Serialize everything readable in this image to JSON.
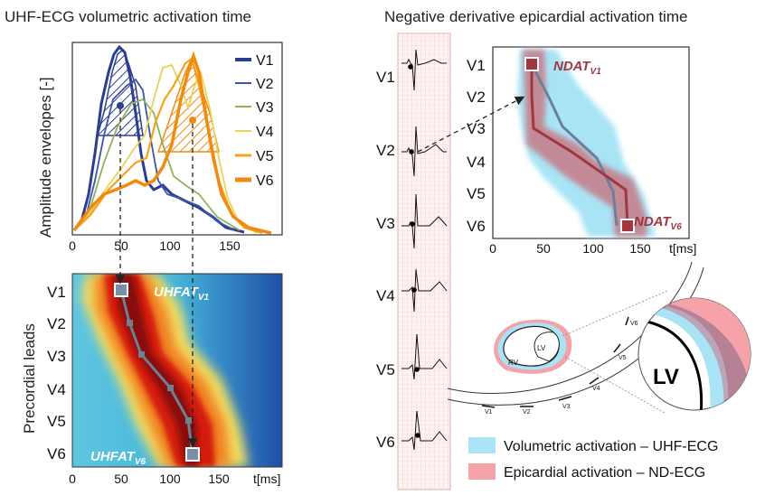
{
  "titles": {
    "left": "UHF-ECG volumetric activation time",
    "right": "Negative derivative epicardial activation time"
  },
  "envelope_panel": {
    "ylabel": "Amplitude envelopes [-]",
    "xticks": [
      "0",
      "50",
      "100",
      "150"
    ],
    "legend": [
      "V1",
      "V2",
      "V3",
      "V4",
      "V5",
      "V6"
    ],
    "colors": [
      "#2c3e8f",
      "#3d55a8",
      "#8fb35a",
      "#e8d35a",
      "#f5a21c",
      "#f08a10"
    ]
  },
  "heatmap_panel": {
    "ylabel": "Precordial leads",
    "leads": [
      "V1",
      "V2",
      "V3",
      "V4",
      "V5",
      "V6"
    ],
    "xticks": [
      "0",
      "50",
      "100",
      "150"
    ],
    "xunit": "t[ms]",
    "label_top_main": "UHFAT",
    "label_top_sub": "V1",
    "label_bottom_main": "UHFAT",
    "label_bottom_sub": "V6"
  },
  "ecg_strip": {
    "leads": [
      "V1",
      "V2",
      "V3",
      "V4",
      "V5",
      "V6"
    ]
  },
  "ndat_panel": {
    "leads": [
      "V1",
      "V2",
      "V3",
      "V4",
      "V5",
      "V6"
    ],
    "xticks": [
      "0",
      "50",
      "100",
      "150"
    ],
    "xunit": "t[ms]",
    "label_top_main": "NDAT",
    "label_top_sub": "V1",
    "label_bottom_main": "NDAT",
    "label_bottom_sub": "V6"
  },
  "heart_diagram": {
    "lv_label": "LV",
    "rv_label": "RV",
    "zoom_label": "LV",
    "electrodes": [
      "V1",
      "V2",
      "V3",
      "V4",
      "V5",
      "V6"
    ]
  },
  "legend": {
    "volumetric": "Volumetric activation – UHF-ECG",
    "epicardial": "Epicardial activation – ND-ECG",
    "volumetric_color": "#a8e4f5",
    "epicardial_color": "#f5a3a8"
  }
}
